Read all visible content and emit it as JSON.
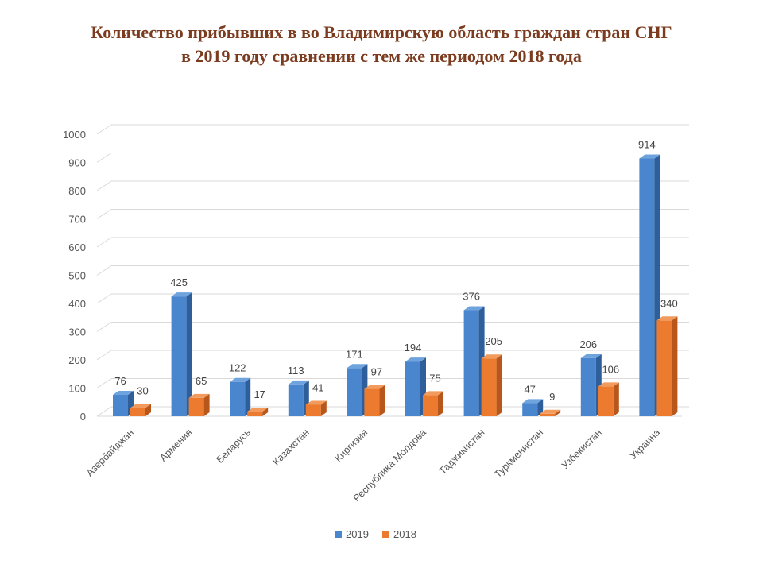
{
  "title": {
    "line1": "Количество прибывших в во Владимирскую область граждан стран СНГ",
    "line2": "в 2019 году сравнении с тем же периодом 2018 года"
  },
  "colors": {
    "series_2019": "#4a86cd",
    "series_2019_side": "#2f5f9a",
    "series_2019_top": "#6fa3dd",
    "series_2018": "#ec7b2f",
    "series_2018_side": "#b8571b",
    "series_2018_top": "#f29b5c",
    "grid": "#d9d9d9",
    "title": "#7b3b1f"
  },
  "chart_data": {
    "type": "bar",
    "categories": [
      "Азербайджан",
      "Армения",
      "Беларусь",
      "Казахстан",
      "Киргизия",
      "Республика Молдова",
      "Таджикистан",
      "Туркменистан",
      "Узбекистан",
      "Украина"
    ],
    "series": [
      {
        "name": "2019",
        "values": [
          76,
          425,
          122,
          113,
          171,
          194,
          376,
          47,
          206,
          914
        ]
      },
      {
        "name": "2018",
        "values": [
          30,
          65,
          17,
          41,
          97,
          75,
          205,
          9,
          106,
          340
        ]
      }
    ],
    "ylim": [
      0,
      1000
    ],
    "yticks": [
      0,
      100,
      200,
      300,
      400,
      500,
      600,
      700,
      800,
      900,
      1000
    ],
    "grid": true,
    "legend_position": "bottom",
    "data_labels": true,
    "style": "3d-clustered-column"
  }
}
